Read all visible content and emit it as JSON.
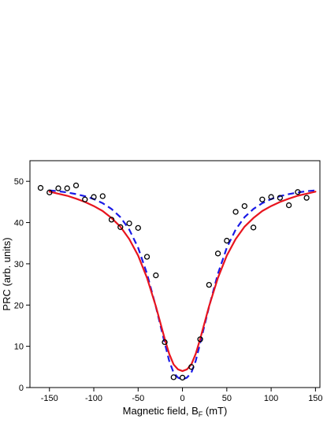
{
  "chart_data": {
    "type": "scatter",
    "xlabel": "Magnetic field, B",
    "xlabel_sub": "F",
    "xlabel_unit": " (mT)",
    "ylabel": "PRC (arb. units)",
    "xlim": [
      -172,
      155
    ],
    "ylim": [
      0,
      55
    ],
    "xticks": [
      -150,
      -100,
      -50,
      0,
      50,
      100,
      150
    ],
    "yticks": [
      0,
      10,
      20,
      30,
      40,
      50
    ],
    "grid": false,
    "legend": "none",
    "series": [
      {
        "kind": "points",
        "marker": "open-circle",
        "color": "#000000",
        "x": [
          -160,
          -150,
          -140,
          -130,
          -120,
          -110,
          -100,
          -90,
          -80,
          -70,
          -60,
          -50,
          -40,
          -30,
          -20,
          -10,
          0,
          10,
          20,
          30,
          40,
          50,
          60,
          70,
          80,
          90,
          100,
          110,
          120,
          130,
          140
        ],
        "y": [
          48.4,
          47.3,
          48.3,
          48.3,
          49.0,
          45.6,
          46.2,
          46.4,
          40.7,
          38.9,
          39.8,
          38.7,
          31.7,
          27.2,
          11.0,
          2.5,
          2.4,
          5.0,
          11.7,
          24.9,
          32.5,
          35.6,
          42.6,
          44.0,
          38.8,
          45.6,
          46.2,
          46.0,
          44.2,
          47.4,
          46.0
        ]
      },
      {
        "kind": "line",
        "style": "dashed",
        "color": "#1a1ae6",
        "x": [
          -150,
          -140,
          -130,
          -120,
          -110,
          -100,
          -90,
          -80,
          -70,
          -60,
          -50,
          -40,
          -30,
          -20,
          -15,
          -10,
          -5,
          0,
          5,
          10,
          15,
          20,
          30,
          40,
          50,
          60,
          70,
          80,
          90,
          100,
          110,
          120,
          130,
          140,
          150
        ],
        "y": [
          47.8,
          47.6,
          47.3,
          46.9,
          46.4,
          45.7,
          44.7,
          43.3,
          41.3,
          38.3,
          33.9,
          27.6,
          19.6,
          10.8,
          6.5,
          3.6,
          2.4,
          2.0,
          2.4,
          3.6,
          6.5,
          10.8,
          19.6,
          27.6,
          33.9,
          38.3,
          41.3,
          43.3,
          44.7,
          45.7,
          46.4,
          46.9,
          47.3,
          47.6,
          47.8
        ]
      },
      {
        "kind": "line",
        "style": "solid",
        "color": "#e8141e",
        "x": [
          -150,
          -140,
          -130,
          -120,
          -110,
          -100,
          -90,
          -80,
          -70,
          -60,
          -50,
          -40,
          -30,
          -20,
          -15,
          -10,
          -5,
          0,
          5,
          10,
          15,
          20,
          30,
          40,
          50,
          60,
          70,
          80,
          90,
          100,
          110,
          120,
          130,
          140,
          150
        ],
        "y": [
          47.5,
          47.0,
          46.5,
          45.8,
          45.0,
          44.0,
          42.8,
          41.1,
          39.0,
          36.0,
          32.0,
          26.6,
          19.7,
          11.8,
          8.2,
          5.6,
          4.4,
          4.0,
          4.4,
          5.6,
          8.2,
          11.8,
          19.7,
          26.6,
          32.0,
          36.0,
          39.0,
          41.1,
          42.8,
          44.0,
          45.0,
          45.8,
          46.5,
          47.0,
          47.5
        ]
      }
    ]
  }
}
